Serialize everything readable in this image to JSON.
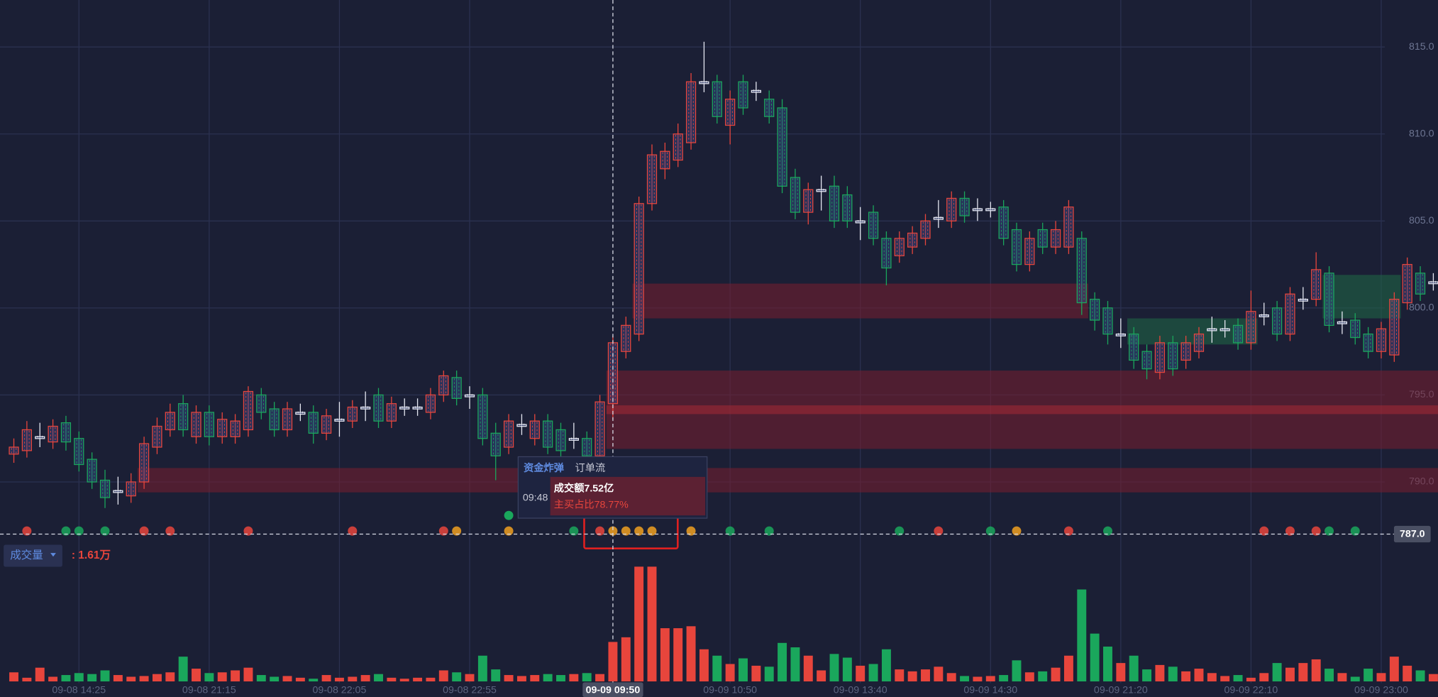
{
  "chart_data": [
    {
      "type": "candlestick",
      "categories": [
        null,
        null,
        null,
        null,
        null,
        "09-08 14:25",
        null,
        null,
        null,
        null,
        null,
        null,
        null,
        null,
        null,
        "09-08 21:15",
        null,
        null,
        null,
        null,
        null,
        null,
        null,
        null,
        null,
        "09-08 22:05",
        null,
        null,
        null,
        null,
        null,
        null,
        null,
        null,
        null,
        "09-08 22:55",
        null,
        null,
        null,
        null,
        null,
        null,
        null,
        null,
        null,
        null,
        "09-09 09:50",
        null,
        null,
        null,
        null,
        null,
        null,
        null,
        null,
        "09-09 10:50",
        null,
        null,
        null,
        null,
        null,
        null,
        null,
        null,
        null,
        "09-09 13:40",
        null,
        null,
        null,
        null,
        null,
        null,
        null,
        null,
        null,
        "09-09 14:30",
        null,
        null,
        null,
        null,
        null,
        null,
        null,
        null,
        null,
        "09-09 21:20",
        null,
        null,
        null,
        null,
        null,
        null,
        null,
        null,
        null,
        "09-09 22:10",
        null,
        null,
        null,
        null,
        null,
        null,
        null,
        null,
        null,
        "09-09 23:00",
        null,
        null,
        null,
        null
      ],
      "open": [
        791.6,
        791.8,
        792.6,
        792.3,
        793.4,
        792.5,
        791.3,
        790.1,
        789.5,
        789.2,
        790.0,
        792.0,
        793.0,
        794.5,
        792.6,
        794.0,
        792.6,
        792.6,
        793.0,
        795.0,
        794.2,
        793.0,
        794.0,
        794.0,
        792.8,
        793.6,
        793.5,
        794.3,
        795.0,
        793.5,
        794.3,
        794.3,
        794.0,
        795.0,
        796.0,
        795.0,
        795.0,
        792.8,
        792.0,
        793.3,
        792.5,
        793.5,
        793.0,
        792.5,
        792.5,
        791.5,
        794.5,
        797.5,
        798.5,
        806.0,
        808.0,
        808.5,
        809.5,
        813.0,
        813.0,
        810.5,
        813.0,
        812.5,
        812.0,
        811.5,
        807.5,
        805.5,
        806.8,
        807.0,
        806.5,
        805.0,
        805.5,
        804.0,
        803.0,
        803.5,
        804.0,
        805.2,
        805.0,
        806.3,
        805.7,
        805.7,
        805.8,
        804.5,
        802.5,
        804.5,
        803.5,
        803.5,
        804.0,
        800.5,
        800.0,
        798.5,
        798.5,
        797.5,
        796.3,
        798.0,
        797.0,
        797.5,
        798.8,
        798.8,
        799.0,
        798.0,
        799.6,
        800.0,
        798.5,
        800.5,
        800.5,
        802.0,
        799.2,
        799.3,
        798.5,
        797.5,
        797.3,
        800.3,
        802.0,
        801.5
      ],
      "high": [
        792.5,
        793.5,
        793.4,
        793.6,
        793.8,
        792.9,
        791.7,
        790.7,
        790.3,
        790.5,
        792.6,
        793.7,
        794.5,
        795.0,
        794.4,
        794.4,
        794.0,
        793.9,
        795.5,
        795.4,
        794.6,
        794.6,
        794.5,
        794.4,
        794.2,
        794.6,
        794.7,
        795.2,
        795.4,
        794.9,
        794.8,
        794.8,
        795.4,
        796.4,
        796.4,
        795.5,
        795.4,
        793.4,
        793.9,
        793.9,
        793.9,
        793.9,
        793.4,
        793.4,
        792.9,
        795.0,
        798.4,
        799.5,
        806.4,
        809.4,
        809.5,
        810.6,
        813.5,
        815.3,
        813.4,
        812.5,
        813.4,
        813.0,
        812.5,
        812.0,
        808.0,
        807.2,
        807.6,
        807.6,
        807.0,
        805.8,
        805.9,
        804.4,
        804.4,
        804.7,
        805.4,
        806.2,
        806.7,
        806.7,
        806.3,
        806.1,
        806.2,
        804.9,
        804.4,
        804.9,
        805.0,
        806.2,
        804.4,
        800.9,
        800.4,
        799.4,
        798.9,
        797.9,
        798.4,
        798.4,
        798.4,
        798.9,
        799.5,
        799.3,
        799.4,
        801.0,
        800.3,
        800.4,
        801.2,
        801.2,
        803.2,
        802.4,
        799.8,
        799.7,
        798.9,
        799.2,
        800.9,
        802.9,
        802.4,
        802.0
      ],
      "low": [
        791.1,
        791.4,
        792.0,
        791.9,
        791.8,
        790.6,
        789.6,
        788.5,
        788.7,
        788.8,
        789.6,
        791.6,
        792.6,
        792.6,
        792.2,
        792.1,
        792.2,
        792.2,
        792.6,
        793.6,
        792.6,
        792.6,
        793.5,
        792.2,
        792.4,
        792.6,
        793.1,
        793.5,
        793.1,
        793.1,
        793.8,
        793.8,
        793.6,
        794.6,
        794.4,
        794.2,
        792.1,
        790.1,
        791.6,
        792.7,
        792.1,
        791.6,
        791.4,
        791.9,
        791.1,
        791.1,
        793.6,
        797.1,
        798.1,
        805.6,
        807.4,
        808.1,
        809.1,
        812.4,
        810.6,
        809.4,
        811.1,
        811.9,
        810.6,
        806.6,
        805.1,
        804.8,
        805.6,
        804.6,
        804.6,
        803.9,
        803.6,
        801.3,
        802.6,
        803.1,
        803.6,
        804.6,
        804.6,
        804.9,
        805.0,
        805.2,
        803.6,
        802.1,
        802.1,
        803.1,
        803.1,
        803.1,
        799.6,
        798.7,
        797.9,
        797.7,
        796.5,
        795.9,
        795.9,
        796.1,
        796.5,
        797.1,
        798.0,
        798.3,
        797.6,
        797.6,
        799.0,
        798.1,
        798.1,
        799.9,
        800.1,
        798.6,
        798.5,
        797.9,
        797.1,
        797.1,
        796.9,
        799.9,
        800.4,
        801.0
      ],
      "close": [
        792.0,
        793.0,
        792.6,
        793.2,
        792.3,
        791.0,
        790.0,
        789.1,
        789.5,
        790.0,
        792.2,
        793.2,
        794.0,
        793.0,
        794.0,
        792.6,
        793.6,
        793.5,
        795.2,
        794.0,
        793.0,
        794.2,
        794.0,
        792.8,
        793.8,
        793.6,
        794.3,
        794.3,
        793.5,
        794.5,
        794.3,
        794.3,
        795.0,
        796.1,
        794.8,
        795.0,
        792.5,
        791.5,
        793.5,
        793.3,
        793.5,
        792.0,
        791.8,
        792.5,
        791.5,
        794.6,
        798.0,
        799.0,
        806.0,
        808.8,
        809.0,
        810.0,
        813.0,
        813.0,
        811.0,
        812.0,
        811.5,
        812.5,
        811.0,
        807.0,
        805.5,
        806.8,
        806.8,
        805.0,
        805.0,
        805.0,
        804.0,
        802.3,
        804.0,
        804.3,
        805.0,
        805.2,
        806.3,
        805.3,
        805.7,
        805.7,
        804.0,
        802.5,
        804.0,
        803.5,
        804.5,
        805.8,
        800.3,
        799.3,
        798.5,
        798.5,
        797.0,
        796.5,
        798.0,
        796.5,
        798.0,
        798.5,
        798.8,
        798.8,
        798.0,
        799.8,
        799.6,
        798.5,
        800.8,
        800.5,
        802.2,
        799.0,
        799.2,
        798.3,
        797.5,
        798.8,
        800.5,
        802.5,
        800.8,
        801.5
      ],
      "up_color": "#e8453c",
      "down_color": "#1aa75c",
      "flat_color": "#e6e8f2",
      "ylim": [
        786.6,
        817.7
      ],
      "yticks": [
        {
          "value": 790,
          "label": "790.0"
        },
        {
          "value": 795,
          "label": "795.0"
        },
        {
          "value": 800,
          "label": "800.0"
        },
        {
          "value": 805,
          "label": "805.0"
        },
        {
          "value": 810,
          "label": "810.0"
        },
        {
          "value": 815,
          "label": "815.0"
        }
      ],
      "grid": true,
      "zones": [
        {
          "from": 48,
          "to": 82,
          "low": 799.4,
          "high": 801.4,
          "color": "#7a1e2e"
        },
        {
          "from": 46,
          "to": 109,
          "low": 791.9,
          "high": 796.4,
          "color": "#7a1e2e"
        },
        {
          "from": 46,
          "to": 109,
          "low": 793.9,
          "high": 794.4,
          "color": "#a52a35"
        },
        {
          "from": 10,
          "to": 109,
          "low": 789.4,
          "high": 790.8,
          "color": "#7a1e2e"
        },
        {
          "from": 86,
          "to": 95,
          "low": 797.9,
          "high": 799.4,
          "color": "#1f6a46"
        },
        {
          "from": 101,
          "to": 106,
          "low": 799.4,
          "high": 801.9,
          "color": "#1f6a46"
        }
      ],
      "crosshair": {
        "x": 46,
        "y": {
          "value": 787.0,
          "label": "787.0"
        }
      }
    },
    {
      "type": "bar",
      "title": "成交量",
      "readout": {
        "value": 1.61,
        "label": ": 1.61万"
      },
      "values": [
        0.37,
        0.15,
        0.56,
        0.19,
        0.26,
        0.34,
        0.3,
        0.45,
        0.26,
        0.19,
        0.22,
        0.3,
        0.37,
        1.01,
        0.52,
        0.34,
        0.37,
        0.45,
        0.56,
        0.26,
        0.19,
        0.22,
        0.15,
        0.11,
        0.26,
        0.15,
        0.19,
        0.26,
        0.3,
        0.15,
        0.11,
        0.15,
        0.15,
        0.45,
        0.37,
        0.3,
        1.05,
        0.49,
        0.26,
        0.22,
        0.26,
        0.3,
        0.26,
        0.3,
        0.34,
        0.3,
        1.61,
        1.8,
        4.68,
        4.68,
        2.17,
        2.17,
        2.25,
        1.31,
        1.05,
        0.71,
        0.94,
        0.64,
        0.6,
        1.57,
        1.39,
        1.05,
        0.45,
        1.12,
        0.97,
        0.64,
        0.71,
        1.31,
        0.49,
        0.41,
        0.49,
        0.6,
        0.34,
        0.22,
        0.19,
        0.22,
        0.26,
        0.86,
        0.37,
        0.41,
        0.56,
        1.05,
        3.75,
        1.95,
        1.42,
        0.75,
        1.05,
        0.49,
        0.67,
        0.6,
        0.41,
        0.52,
        0.34,
        0.22,
        0.26,
        0.15,
        0.34,
        0.75,
        0.56,
        0.75,
        0.9,
        0.52,
        0.34,
        0.19,
        0.52,
        0.34,
        1.01,
        0.64,
        0.45,
        0.3
      ],
      "ylim": [
        0,
        4.9
      ]
    }
  ],
  "tooltip": {
    "tabs": [
      "资金炸弹",
      "订单流"
    ],
    "time": "09:48",
    "amount": "成交额7.52亿",
    "buy_ratio": "主买占比78.77%"
  }
}
